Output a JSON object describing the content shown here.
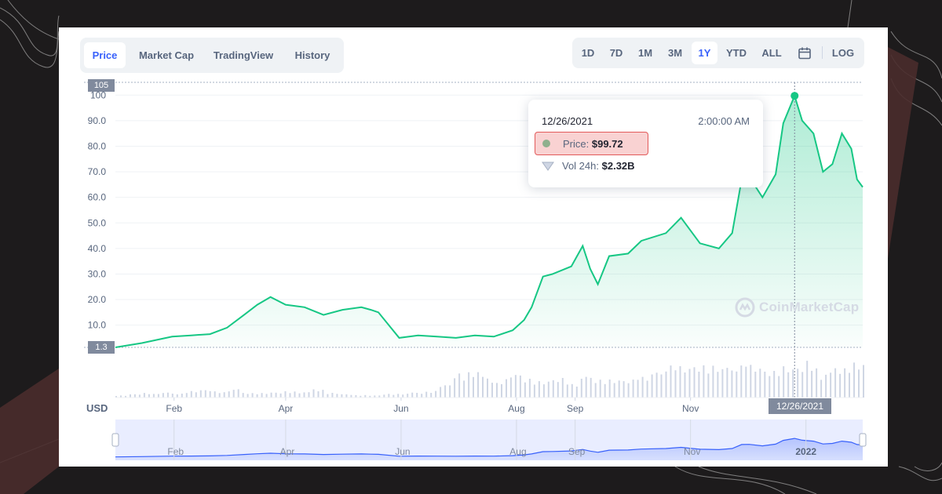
{
  "tabs": [
    {
      "label": "Price",
      "active": true
    },
    {
      "label": "Market Cap",
      "active": false
    },
    {
      "label": "TradingView",
      "active": false
    },
    {
      "label": "History",
      "active": false
    }
  ],
  "ranges": [
    {
      "label": "1D",
      "active": false
    },
    {
      "label": "7D",
      "active": false
    },
    {
      "label": "1M",
      "active": false
    },
    {
      "label": "3M",
      "active": false
    },
    {
      "label": "1Y",
      "active": true
    },
    {
      "label": "YTD",
      "active": false
    },
    {
      "label": "ALL",
      "active": false
    }
  ],
  "calendar_icon": "calendar-icon",
  "log_label": "LOG",
  "currency_label": "USD",
  "watermark": "CoinMarketCap",
  "tooltip": {
    "date": "12/26/2021",
    "time": "2:00:00 AM",
    "price_label": "Price:",
    "price_value": "$99.72",
    "volume_label": "Vol 24h:",
    "volume_value": "$2.32B"
  },
  "crosshair_label": "12/26/2021",
  "y_badges": {
    "top": "105",
    "bottom": "1.3"
  },
  "colors": {
    "accent": "#3861fb",
    "line": "#16c784",
    "navigator_line": "#3861fb",
    "tooltip_highlight": "#f9d2d2"
  },
  "chart_data": {
    "type": "area",
    "title": "",
    "xlabel": "",
    "ylabel": "USD",
    "ylim": [
      1.3,
      105
    ],
    "yticks": [
      "10.0",
      "20.0",
      "30.0",
      "40.0",
      "50.0",
      "60.0",
      "70.0",
      "80.0",
      "90.0",
      "100"
    ],
    "xticks": [
      "Feb",
      "Apr",
      "Jun",
      "Aug",
      "Sep",
      "Nov"
    ],
    "navigator_xticks": [
      "Feb",
      "Apr",
      "Jun",
      "Aug",
      "Sep",
      "Nov",
      "2022"
    ],
    "grid": true,
    "legend": "none",
    "series": [
      {
        "x": [
          "2021-01-01",
          "2021-01-15",
          "2021-01-31",
          "2021-02-10",
          "2021-02-20",
          "2021-03-01",
          "2021-03-10",
          "2021-03-17",
          "2021-03-24",
          "2021-04-01",
          "2021-04-11",
          "2021-04-21",
          "2021-05-01",
          "2021-05-11",
          "2021-05-16",
          "2021-05-20",
          "2021-05-31",
          "2021-06-10",
          "2021-06-20",
          "2021-06-30",
          "2021-07-10",
          "2021-07-20",
          "2021-07-30",
          "2021-08-05",
          "2021-08-09",
          "2021-08-15",
          "2021-08-20",
          "2021-08-30",
          "2021-09-05",
          "2021-09-09",
          "2021-09-13",
          "2021-09-19",
          "2021-09-29",
          "2021-10-06",
          "2021-10-19",
          "2021-10-27",
          "2021-11-06",
          "2021-11-16",
          "2021-11-23",
          "2021-11-28",
          "2021-12-02",
          "2021-12-09",
          "2021-12-16",
          "2021-12-20",
          "2021-12-26",
          "2021-12-30",
          "2022-01-05",
          "2022-01-10",
          "2022-01-15",
          "2022-01-20",
          "2022-01-25",
          "2022-01-28",
          "2022-01-31"
        ],
        "y": [
          1.3,
          3,
          5.5,
          6,
          6.5,
          9,
          14,
          18,
          21,
          18,
          17,
          14,
          16,
          17,
          16,
          15,
          5,
          6,
          5.5,
          5,
          6,
          5.5,
          8,
          12,
          17,
          29,
          30,
          33,
          41,
          32,
          26,
          37,
          38,
          43,
          46,
          52,
          42,
          40,
          46,
          67,
          68,
          60,
          69,
          89,
          99.72,
          90,
          85,
          70,
          73,
          85,
          79,
          67,
          64
        ]
      }
    ],
    "volume_relative": [
      0.05,
      0.08,
      0.1,
      0.12,
      0.1,
      0.15,
      0.18,
      0.14,
      0.2,
      0.12,
      0.1,
      0.12,
      0.15,
      0.13,
      0.22,
      0.1,
      0.08,
      0.06,
      0.05,
      0.08,
      0.1,
      0.12,
      0.15,
      0.3,
      0.55,
      0.65,
      0.5,
      0.4,
      0.55,
      0.45,
      0.4,
      0.42,
      0.38,
      0.5,
      0.45,
      0.42,
      0.4,
      0.55,
      0.6,
      0.85,
      0.7,
      0.75,
      0.8,
      0.72,
      0.9,
      0.7,
      0.65,
      0.75,
      0.7,
      0.8,
      0.6,
      0.75,
      0.8
    ]
  }
}
